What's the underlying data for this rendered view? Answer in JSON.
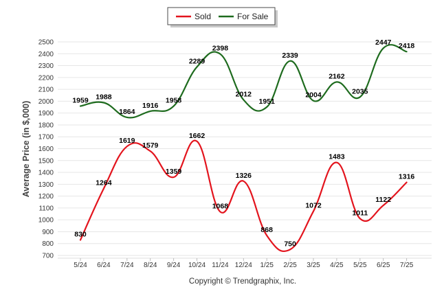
{
  "chart_data": {
    "type": "line",
    "title": "",
    "xlabel": "",
    "ylabel": "Average Price (in $,000)",
    "ylim": [
      700,
      2500
    ],
    "y_ticks": [
      700,
      800,
      900,
      1000,
      1100,
      1200,
      1300,
      1400,
      1500,
      1600,
      1700,
      1800,
      1900,
      2000,
      2100,
      2200,
      2300,
      2400,
      2500
    ],
    "categories": [
      "5/24",
      "6/24",
      "7/24",
      "8/24",
      "9/24",
      "10/24",
      "11/24",
      "12/24",
      "1/25",
      "2/25",
      "3/25",
      "4/25",
      "5/25",
      "6/25",
      "7/25"
    ],
    "series": [
      {
        "name": "Sold",
        "color": "#e3141d",
        "values": [
          830,
          1264,
          1619,
          1579,
          1359,
          1662,
          1068,
          1326,
          868,
          750,
          1072,
          1483,
          1011,
          1122,
          1316
        ],
        "plot_values": [
          830,
          1264,
          1619,
          1579,
          1359,
          1662,
          1068,
          1326,
          868,
          750,
          1072,
          1483,
          1011,
          1122,
          1316
        ]
      },
      {
        "name": "For Sale",
        "color": "#1e6b1e",
        "values": [
          1959,
          1988,
          1864,
          1916,
          1958,
          2289,
          2398,
          2012,
          1951,
          2339,
          2004,
          2162,
          2035,
          2447,
          2418
        ],
        "plot_values": [
          1959,
          1988,
          1864,
          1916,
          1958,
          2289,
          2398,
          2012,
          1951,
          2339,
          2004,
          2162,
          2035,
          2447,
          2418
        ]
      }
    ],
    "legend_position": "top-center",
    "grid": true,
    "footer": "Copyright © Trendgraphix, Inc."
  }
}
